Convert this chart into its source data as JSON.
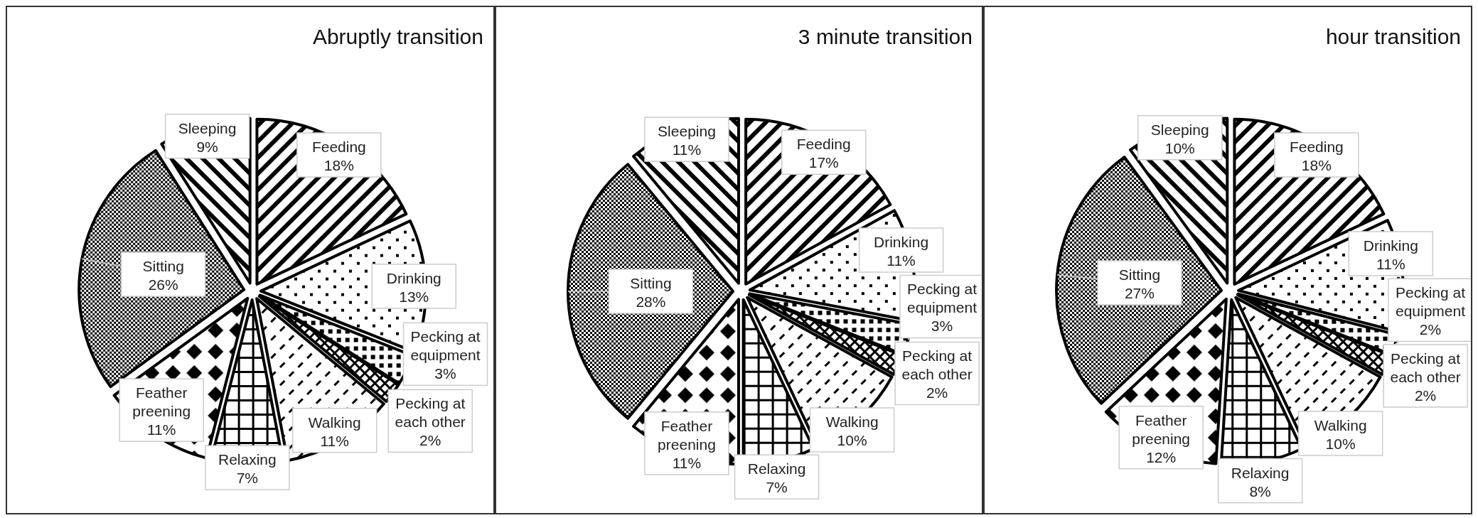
{
  "chart_data": [
    {
      "type": "pie",
      "title": "Abruptly transition",
      "categories": [
        "Feeding",
        "Drinking",
        "Pecking at equipment",
        "Pecking at each other",
        "Walking",
        "Relaxing",
        "Feather preening",
        "Sitting",
        "Sleeping"
      ],
      "values": [
        18,
        13,
        3,
        2,
        11,
        7,
        11,
        26,
        9
      ],
      "value_labels": [
        "18%",
        "13%",
        "3%",
        "2%",
        "11%",
        "7%",
        "11%",
        "26%",
        "9%"
      ]
    },
    {
      "type": "pie",
      "title": "3 minute transition",
      "categories": [
        "Feeding",
        "Drinking",
        "Pecking at equipment",
        "Pecking at each other",
        "Walking",
        "Relaxing",
        "Feather preening",
        "Sitting",
        "Sleeping"
      ],
      "values": [
        17,
        11,
        3,
        2,
        10,
        7,
        11,
        28,
        11
      ],
      "value_labels": [
        "17%",
        "11%",
        "3%",
        "2%",
        "10%",
        "7%",
        "11%",
        "28%",
        "11%"
      ]
    },
    {
      "type": "pie",
      "title": "hour transition",
      "categories": [
        "Feeding",
        "Drinking",
        "Pecking at equipment",
        "Pecking at each other",
        "Walking",
        "Relaxing",
        "Feather preening",
        "Sitting",
        "Sleeping"
      ],
      "values": [
        18,
        11,
        2,
        2,
        10,
        8,
        12,
        27,
        10
      ],
      "value_labels": [
        "18%",
        "11%",
        "2%",
        "2%",
        "10%",
        "8%",
        "12%",
        "27%",
        "10%"
      ]
    }
  ]
}
